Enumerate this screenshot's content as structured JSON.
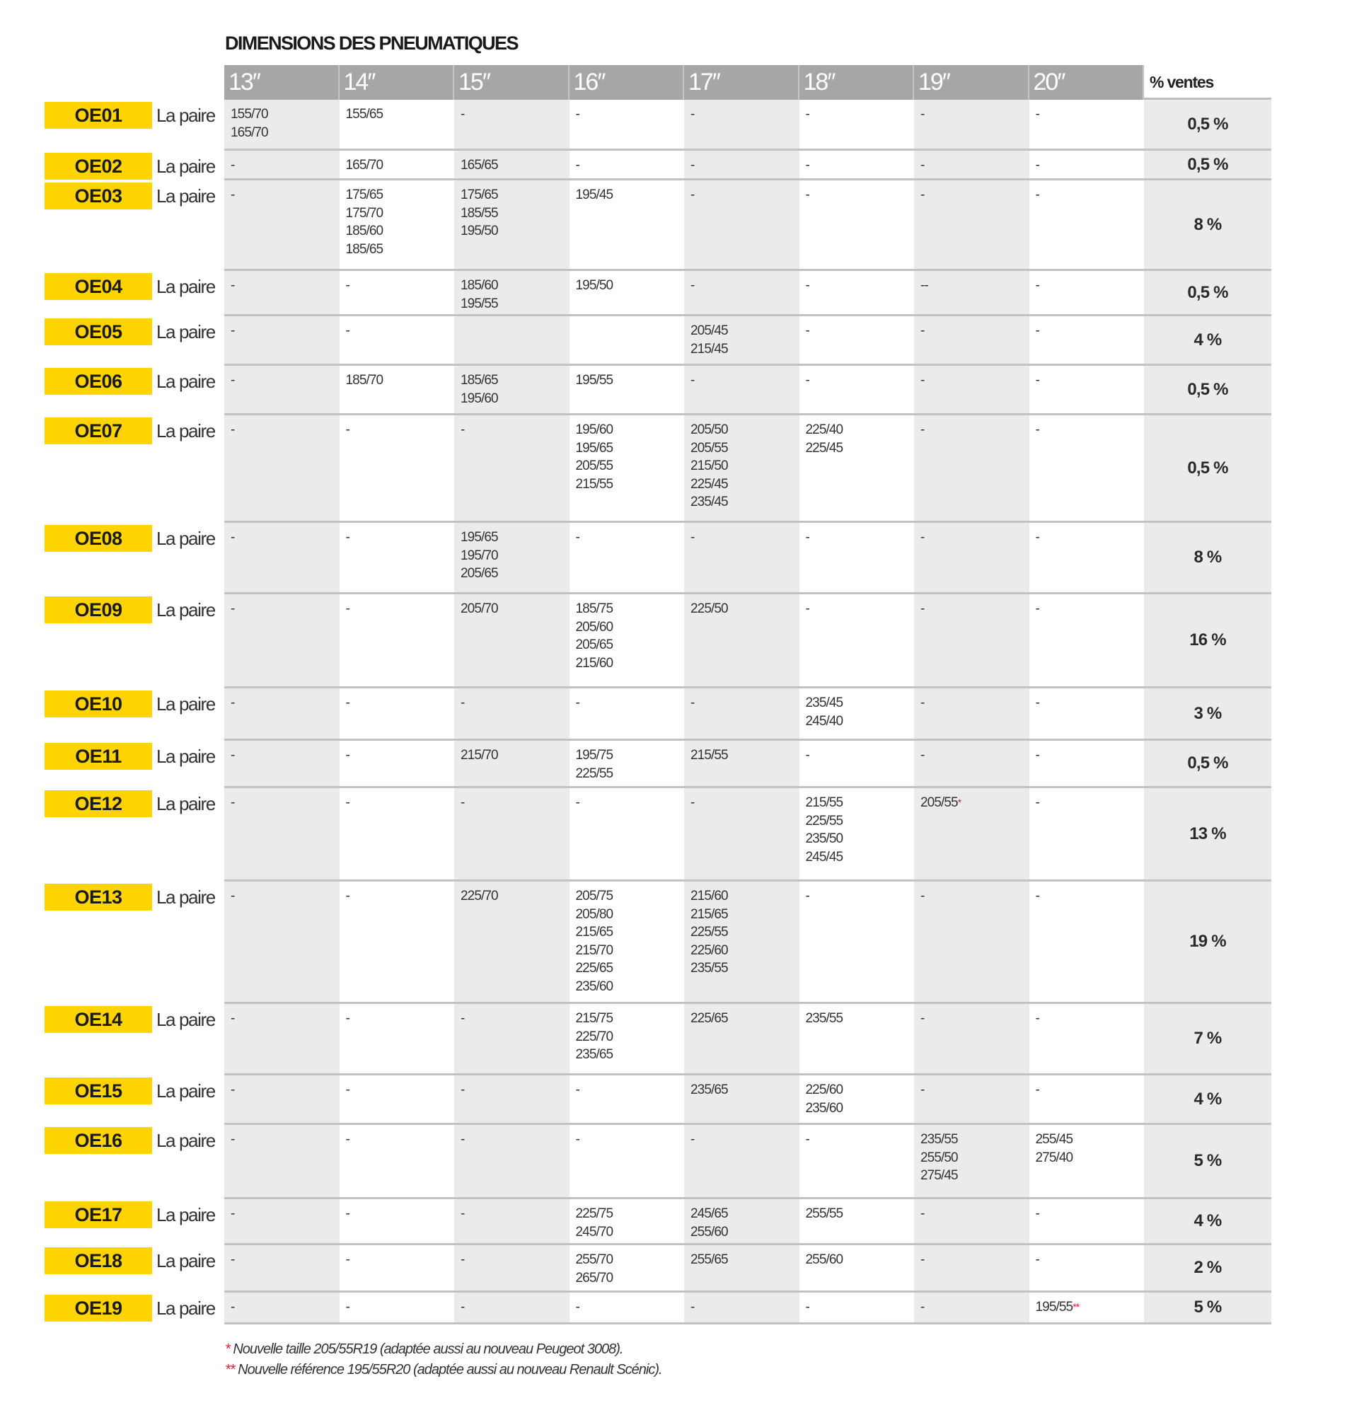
{
  "title": "DIMENSIONS DES PNEUMATIQUES",
  "columns": [
    "13″",
    "14″",
    "15″",
    "16″",
    "17″",
    "18″",
    "19″",
    "20″"
  ],
  "pct_header": "% ventes",
  "pair_label": "La paire",
  "colors": {
    "code_bg": "#ffd400",
    "header_bg": "#a6a6a6",
    "shade": "#ebebeb",
    "asterisk": "#e0202a"
  },
  "rows": [
    {
      "code": "OE01",
      "cells": [
        [
          "155/70",
          "165/70"
        ],
        [
          "155/65"
        ],
        [
          "-"
        ],
        [
          "-"
        ],
        [
          "-"
        ],
        [
          "-"
        ],
        [
          "-"
        ],
        [
          "-"
        ]
      ],
      "pct": "0,5 %"
    },
    {
      "code": "OE02",
      "cells": [
        [
          "-"
        ],
        [
          "165/70"
        ],
        [
          "165/65"
        ],
        [
          "-"
        ],
        [
          "-"
        ],
        [
          "-"
        ],
        [
          "-"
        ],
        [
          "-"
        ]
      ],
      "pct": "0,5 %"
    },
    {
      "code": "OE03",
      "cells": [
        [
          "-"
        ],
        [
          "175/65",
          "175/70",
          "185/60",
          "185/65"
        ],
        [
          "175/65",
          "185/55",
          "195/50"
        ],
        [
          "195/45"
        ],
        [
          "-"
        ],
        [
          "-"
        ],
        [
          "-"
        ],
        [
          "-"
        ]
      ],
      "pct": "8 %"
    },
    {
      "code": "OE04",
      "cells": [
        [
          "-"
        ],
        [
          "-"
        ],
        [
          "185/60",
          "195/55"
        ],
        [
          "195/50"
        ],
        [
          "-"
        ],
        [
          "-"
        ],
        [
          "--"
        ],
        [
          "-"
        ]
      ],
      "pct": "0,5 %"
    },
    {
      "code": "OE05",
      "cells": [
        [
          "-"
        ],
        [
          "-"
        ],
        [],
        [],
        [
          "205/45",
          "215/45"
        ],
        [
          "-"
        ],
        [
          "-"
        ],
        [
          "-"
        ]
      ],
      "pct": "4 %"
    },
    {
      "code": "OE06",
      "cells": [
        [
          "-"
        ],
        [
          "185/70"
        ],
        [
          "185/65",
          "195/60"
        ],
        [
          "195/55"
        ],
        [
          "-"
        ],
        [
          "-"
        ],
        [
          "-"
        ],
        [
          "-"
        ]
      ],
      "pct": "0,5 %"
    },
    {
      "code": "OE07",
      "cells": [
        [
          "-"
        ],
        [
          "-"
        ],
        [
          "-"
        ],
        [
          "195/60",
          "195/65",
          "205/55",
          "215/55"
        ],
        [
          "205/50",
          "205/55",
          "215/50",
          "225/45",
          "235/45"
        ],
        [
          "225/40",
          "225/45"
        ],
        [
          "-"
        ],
        [
          "-"
        ]
      ],
      "pct": "0,5 %"
    },
    {
      "code": "OE08",
      "cells": [
        [
          "-"
        ],
        [
          "-"
        ],
        [
          "195/65",
          "195/70",
          "205/65"
        ],
        [
          "-"
        ],
        [
          "-"
        ],
        [
          "-"
        ],
        [
          "-"
        ],
        [
          "-"
        ]
      ],
      "pct": "8 %"
    },
    {
      "code": "OE09",
      "cells": [
        [
          "-"
        ],
        [
          "-"
        ],
        [
          "205/70"
        ],
        [
          "185/75",
          "205/60",
          "205/65",
          "215/60"
        ],
        [
          "225/50"
        ],
        [
          "-"
        ],
        [
          "-"
        ],
        [
          "-"
        ]
      ],
      "pct": "16 %"
    },
    {
      "code": "OE10",
      "cells": [
        [
          "-"
        ],
        [
          "-"
        ],
        [
          "-"
        ],
        [
          "-"
        ],
        [
          "-"
        ],
        [
          "235/45",
          "245/40"
        ],
        [
          "-"
        ],
        [
          "-"
        ]
      ],
      "pct": "3 %"
    },
    {
      "code": "OE11",
      "cells": [
        [
          "-"
        ],
        [
          "-"
        ],
        [
          "215/70"
        ],
        [
          "195/75",
          "225/55"
        ],
        [
          "215/55"
        ],
        [
          "-"
        ],
        [
          "-"
        ],
        [
          "-"
        ]
      ],
      "pct": "0,5 %"
    },
    {
      "code": "OE12",
      "cells": [
        [
          "-"
        ],
        [
          "-"
        ],
        [
          "-"
        ],
        [
          "-"
        ],
        [
          "-"
        ],
        [
          "215/55",
          "225/55",
          "235/50",
          "245/45"
        ],
        [
          "205/55*"
        ],
        [
          "-"
        ]
      ],
      "pct": "13 %"
    },
    {
      "code": "OE13",
      "cells": [
        [
          "-"
        ],
        [
          "-"
        ],
        [
          "225/70"
        ],
        [
          "205/75",
          "205/80",
          "215/65",
          "215/70",
          "225/65",
          "235/60"
        ],
        [
          "215/60",
          "215/65",
          "225/55",
          "225/60",
          "235/55"
        ],
        [
          "-"
        ],
        [
          "-"
        ],
        [
          "-"
        ]
      ],
      "pct": "19 %"
    },
    {
      "code": "OE14",
      "cells": [
        [
          "-"
        ],
        [
          "-"
        ],
        [
          "-"
        ],
        [
          "215/75",
          "225/70",
          "235/65"
        ],
        [
          "225/65"
        ],
        [
          "235/55"
        ],
        [
          "-"
        ],
        [
          "-"
        ]
      ],
      "pct": "7 %"
    },
    {
      "code": "OE15",
      "cells": [
        [
          "-"
        ],
        [
          "-"
        ],
        [
          "-"
        ],
        [
          "-"
        ],
        [
          "235/65"
        ],
        [
          "225/60",
          "235/60"
        ],
        [
          "-"
        ],
        [
          "-"
        ]
      ],
      "pct": "4 %"
    },
    {
      "code": "OE16",
      "cells": [
        [
          "-"
        ],
        [
          "-"
        ],
        [
          "-"
        ],
        [
          "-"
        ],
        [
          "-"
        ],
        [
          "-"
        ],
        [
          "235/55",
          "255/50",
          "275/45"
        ],
        [
          "255/45",
          "275/40"
        ]
      ],
      "pct": "5 %"
    },
    {
      "code": "OE17",
      "cells": [
        [
          "-"
        ],
        [
          "-"
        ],
        [
          "-"
        ],
        [
          "225/75",
          "245/70"
        ],
        [
          "245/65",
          "255/60"
        ],
        [
          "255/55"
        ],
        [
          "-"
        ],
        [
          "-"
        ]
      ],
      "pct": "4 %"
    },
    {
      "code": "OE18",
      "cells": [
        [
          "-"
        ],
        [
          "-"
        ],
        [
          "-"
        ],
        [
          "255/70",
          "265/70"
        ],
        [
          "255/65"
        ],
        [
          "255/60"
        ],
        [
          "-"
        ],
        [
          "-"
        ]
      ],
      "pct": "2 %"
    },
    {
      "code": "OE19",
      "cells": [
        [
          "-"
        ],
        [
          "-"
        ],
        [
          "-"
        ],
        [
          "-"
        ],
        [
          "-"
        ],
        [
          "-"
        ],
        [
          "-"
        ],
        [
          "195/55**"
        ]
      ],
      "pct": "5 %"
    }
  ],
  "footnotes": [
    {
      "mark": "*",
      "text": " Nouvelle taille 205/55R19 (adaptée aussi au nouveau Peugeot 3008)."
    },
    {
      "mark": "**",
      "text": " Nouvelle référence 195/55R20 (adaptée aussi au nouveau Renault Scénic)."
    }
  ]
}
